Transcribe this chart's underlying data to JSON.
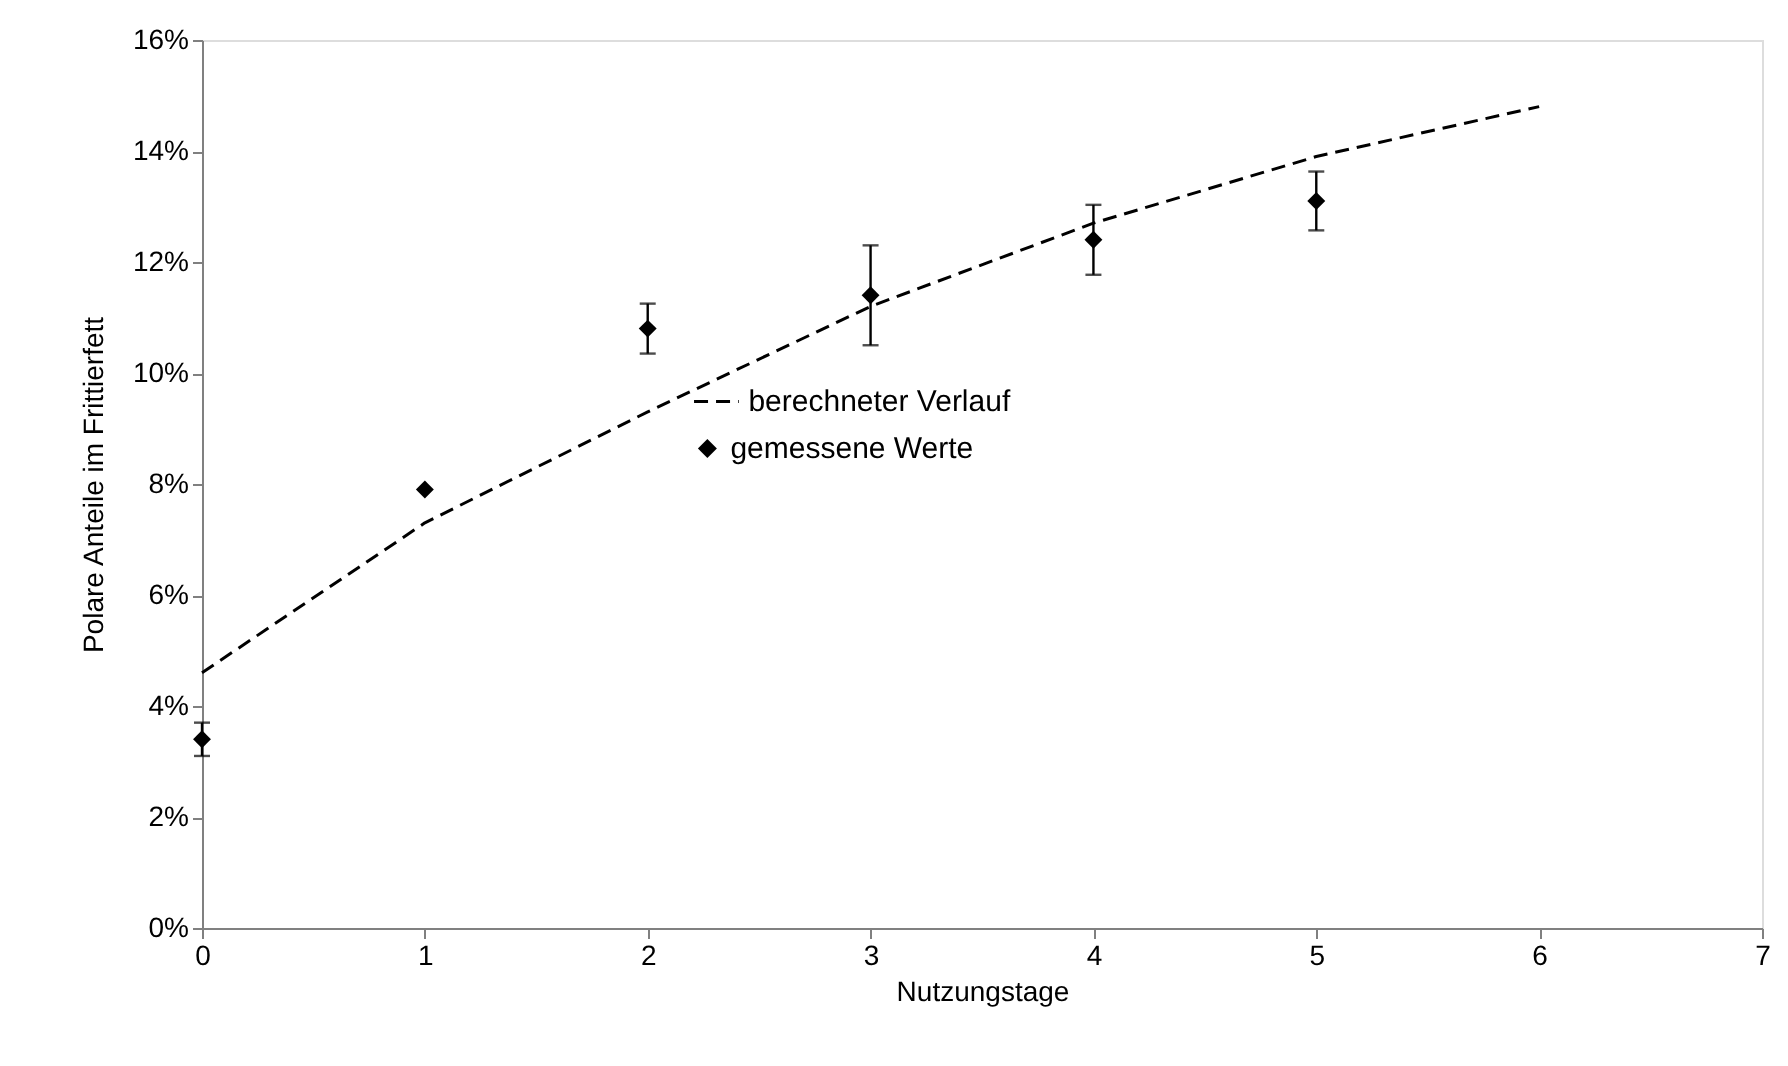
{
  "chart_data": {
    "type": "scatter",
    "xlabel": "Nutzungstage",
    "ylabel": "Polare Anteile im Frittierfett",
    "xlim": [
      0,
      7
    ],
    "xticks": [
      0,
      1,
      2,
      3,
      4,
      5,
      6,
      7
    ],
    "ylim": [
      0,
      16
    ],
    "yticks": [
      {
        "value": 0,
        "label": "0%"
      },
      {
        "value": 2,
        "label": "2%"
      },
      {
        "value": 4,
        "label": "4%"
      },
      {
        "value": 6,
        "label": "6%"
      },
      {
        "value": 8,
        "label": "8%"
      },
      {
        "value": 10,
        "label": "10%"
      },
      {
        "value": 12,
        "label": "12%"
      },
      {
        "value": 14,
        "label": "14%"
      },
      {
        "value": 16,
        "label": "16%"
      }
    ],
    "grid": false,
    "legend": "center",
    "series": [
      {
        "name": "berechneter Verlauf",
        "type": "line",
        "line_style": "dashed",
        "marker": "none",
        "color": "#000000",
        "x": [
          0,
          1,
          2,
          3,
          4,
          5,
          6
        ],
        "values": [
          4.6,
          7.3,
          9.3,
          11.2,
          12.7,
          13.9,
          14.8
        ]
      },
      {
        "name": "gemessene Werte",
        "marker": "diamond",
        "color": "#000000",
        "x": [
          0,
          1,
          2,
          3,
          4,
          5
        ],
        "values": [
          3.4,
          7.9,
          10.8,
          11.4,
          12.4,
          13.1
        ],
        "errors": [
          0.3,
          null,
          0.45,
          0.9,
          0.63,
          0.53
        ]
      }
    ]
  }
}
